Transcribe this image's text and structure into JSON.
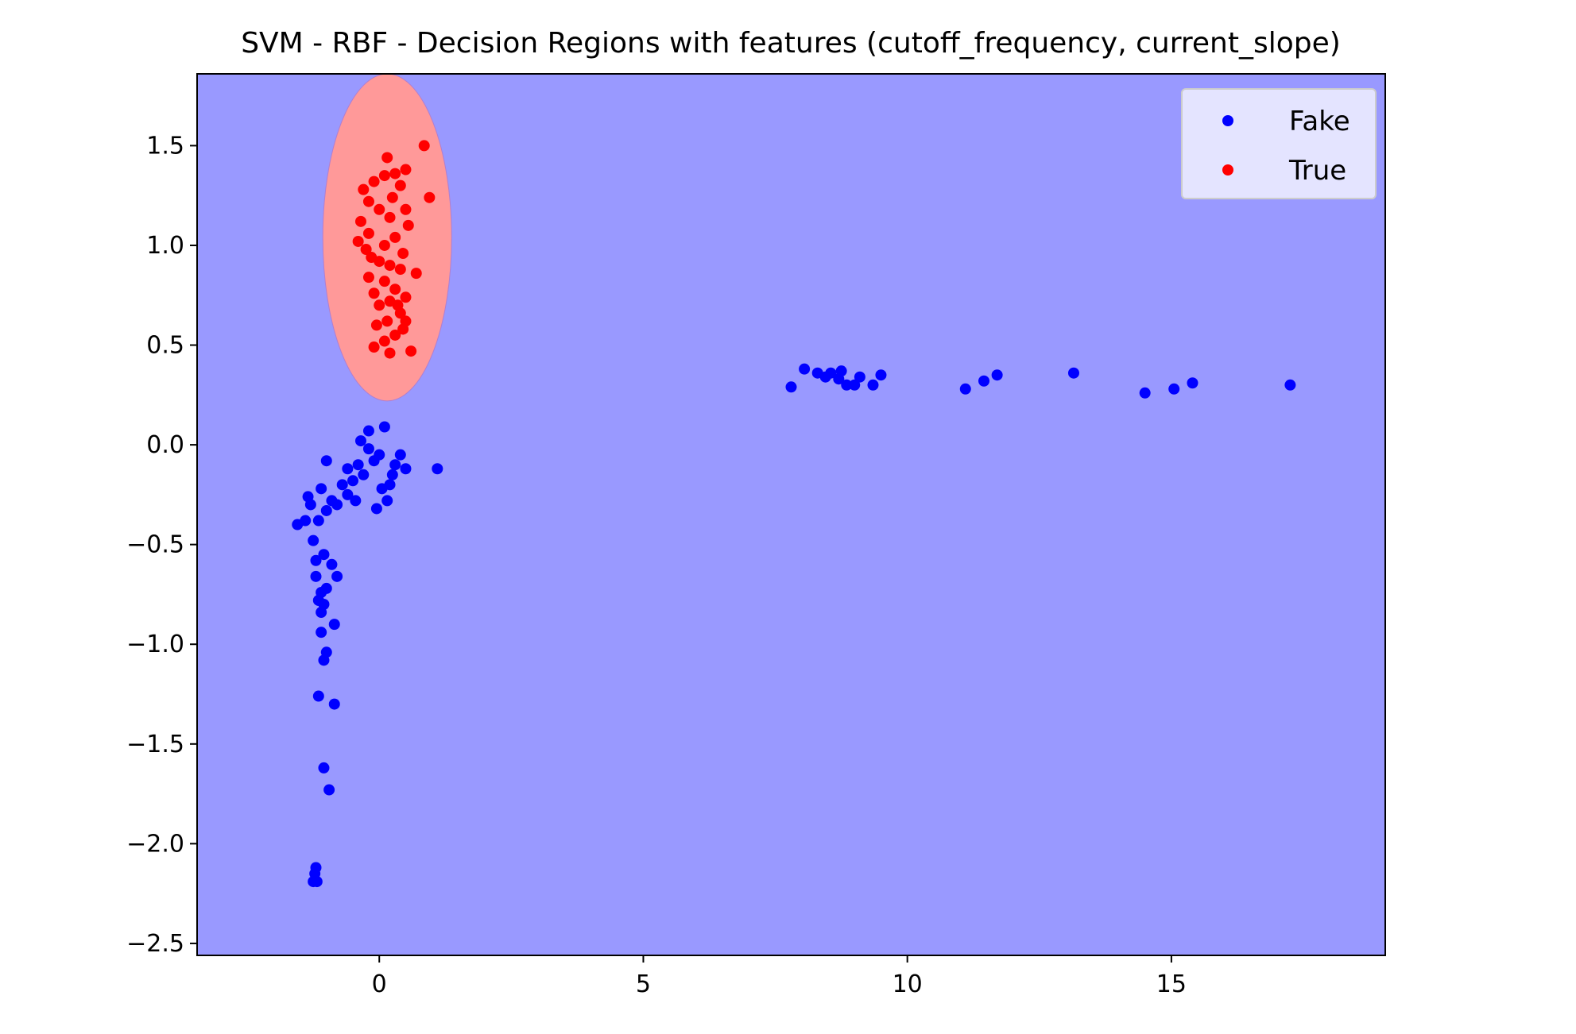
{
  "chart_data": {
    "type": "scatter",
    "title": "SVM - RBF - Decision Regions with features (cutoff_frequency, current_slope)",
    "xlabel": "",
    "ylabel": "",
    "xlim": [
      -3.45,
      19.05
    ],
    "ylim": [
      -2.56,
      1.86
    ],
    "x_ticks": [
      {
        "value": 0,
        "label": "0"
      },
      {
        "value": 5,
        "label": "5"
      },
      {
        "value": 10,
        "label": "10"
      },
      {
        "value": 15,
        "label": "15"
      }
    ],
    "y_ticks": [
      {
        "value": 1.5,
        "label": "1.5"
      },
      {
        "value": 1.0,
        "label": "1.0"
      },
      {
        "value": 0.5,
        "label": "0.5"
      },
      {
        "value": 0.0,
        "label": "0.0"
      },
      {
        "value": -0.5,
        "label": "−0.5"
      },
      {
        "value": -1.0,
        "label": "−1.0"
      },
      {
        "value": -1.5,
        "label": "−1.5"
      },
      {
        "value": -2.0,
        "label": "−2.0"
      },
      {
        "value": -2.5,
        "label": "−2.5"
      }
    ],
    "grid": false,
    "legend": {
      "position": "top-right",
      "entries": [
        {
          "label": "Fake",
          "color": "#0000ff"
        },
        {
          "label": "True",
          "color": "#ff0000"
        }
      ]
    },
    "regions": {
      "background_class": "Fake",
      "background_color": "#9999ff",
      "true_region": {
        "class": "True",
        "color": "#ff9999",
        "shape": "ellipse",
        "center": [
          0.15,
          1.04
        ],
        "radius_x": 1.22,
        "radius_y": 0.82
      }
    },
    "series": [
      {
        "name": "Fake",
        "color": "#0000ff",
        "points": [
          [
            7.8,
            0.29
          ],
          [
            8.05,
            0.38
          ],
          [
            8.3,
            0.36
          ],
          [
            8.45,
            0.34
          ],
          [
            8.55,
            0.36
          ],
          [
            8.7,
            0.33
          ],
          [
            8.75,
            0.37
          ],
          [
            8.85,
            0.3
          ],
          [
            9.0,
            0.3
          ],
          [
            9.1,
            0.34
          ],
          [
            9.35,
            0.3
          ],
          [
            9.5,
            0.35
          ],
          [
            11.1,
            0.28
          ],
          [
            11.45,
            0.32
          ],
          [
            11.7,
            0.35
          ],
          [
            13.15,
            0.36
          ],
          [
            14.5,
            0.26
          ],
          [
            15.05,
            0.28
          ],
          [
            15.4,
            0.31
          ],
          [
            17.25,
            0.3
          ],
          [
            1.1,
            -0.12
          ],
          [
            0.1,
            0.09
          ],
          [
            -0.2,
            0.07
          ],
          [
            -0.35,
            0.02
          ],
          [
            0.0,
            -0.05
          ],
          [
            0.3,
            -0.1
          ],
          [
            0.5,
            -0.12
          ],
          [
            0.2,
            -0.2
          ],
          [
            -0.05,
            -0.32
          ],
          [
            0.15,
            -0.28
          ],
          [
            -0.3,
            -0.15
          ],
          [
            -0.5,
            -0.18
          ],
          [
            -0.6,
            -0.25
          ],
          [
            -0.8,
            -0.3
          ],
          [
            -1.0,
            -0.33
          ],
          [
            -1.15,
            -0.38
          ],
          [
            -1.3,
            -0.3
          ],
          [
            -1.4,
            -0.38
          ],
          [
            -1.55,
            -0.4
          ],
          [
            -1.35,
            -0.26
          ],
          [
            -1.1,
            -0.22
          ],
          [
            -0.9,
            -0.28
          ],
          [
            -0.7,
            -0.2
          ],
          [
            -0.4,
            -0.1
          ],
          [
            -0.1,
            -0.08
          ],
          [
            0.4,
            -0.05
          ],
          [
            0.25,
            -0.15
          ],
          [
            -1.0,
            -0.08
          ],
          [
            -1.25,
            -0.48
          ],
          [
            -1.05,
            -0.55
          ],
          [
            -1.2,
            -0.58
          ],
          [
            -0.9,
            -0.6
          ],
          [
            -0.8,
            -0.66
          ],
          [
            -1.2,
            -0.66
          ],
          [
            -1.0,
            -0.72
          ],
          [
            -1.1,
            -0.74
          ],
          [
            -1.15,
            -0.78
          ],
          [
            -1.05,
            -0.8
          ],
          [
            -1.1,
            -0.84
          ],
          [
            -0.85,
            -0.9
          ],
          [
            -1.1,
            -0.94
          ],
          [
            -1.0,
            -1.04
          ],
          [
            -1.05,
            -1.08
          ],
          [
            -1.15,
            -1.26
          ],
          [
            -0.85,
            -1.3
          ],
          [
            -1.05,
            -1.62
          ],
          [
            -0.95,
            -1.73
          ],
          [
            -1.2,
            -2.12
          ],
          [
            -1.22,
            -2.15
          ],
          [
            -1.25,
            -2.19
          ],
          [
            -1.18,
            -2.19
          ],
          [
            -0.6,
            -0.12
          ],
          [
            -0.2,
            -0.02
          ],
          [
            0.05,
            -0.22
          ],
          [
            -0.45,
            -0.28
          ]
        ]
      },
      {
        "name": "True",
        "color": "#ff0000",
        "points": [
          [
            0.85,
            1.5
          ],
          [
            0.95,
            1.24
          ],
          [
            0.15,
            1.44
          ],
          [
            0.5,
            1.38
          ],
          [
            0.3,
            1.36
          ],
          [
            -0.1,
            1.32
          ],
          [
            0.1,
            1.35
          ],
          [
            0.4,
            1.3
          ],
          [
            -0.3,
            1.28
          ],
          [
            -0.2,
            1.22
          ],
          [
            0.0,
            1.18
          ],
          [
            0.2,
            1.14
          ],
          [
            0.5,
            1.18
          ],
          [
            -0.35,
            1.12
          ],
          [
            0.55,
            1.1
          ],
          [
            -0.2,
            1.06
          ],
          [
            0.3,
            1.04
          ],
          [
            0.1,
            1.0
          ],
          [
            -0.4,
            1.02
          ],
          [
            0.45,
            0.96
          ],
          [
            0.0,
            0.92
          ],
          [
            0.2,
            0.9
          ],
          [
            0.7,
            0.86
          ],
          [
            0.4,
            0.88
          ],
          [
            -0.2,
            0.84
          ],
          [
            0.1,
            0.82
          ],
          [
            0.3,
            0.78
          ],
          [
            -0.1,
            0.76
          ],
          [
            0.5,
            0.74
          ],
          [
            0.2,
            0.72
          ],
          [
            0.0,
            0.7
          ],
          [
            0.4,
            0.66
          ],
          [
            0.15,
            0.62
          ],
          [
            -0.05,
            0.6
          ],
          [
            0.45,
            0.58
          ],
          [
            0.3,
            0.55
          ],
          [
            0.1,
            0.52
          ],
          [
            -0.1,
            0.49
          ],
          [
            0.2,
            0.46
          ],
          [
            0.6,
            0.47
          ],
          [
            0.5,
            0.62
          ],
          [
            0.35,
            0.7
          ],
          [
            -0.15,
            0.94
          ],
          [
            0.25,
            1.24
          ],
          [
            -0.25,
            0.98
          ]
        ]
      }
    ]
  }
}
